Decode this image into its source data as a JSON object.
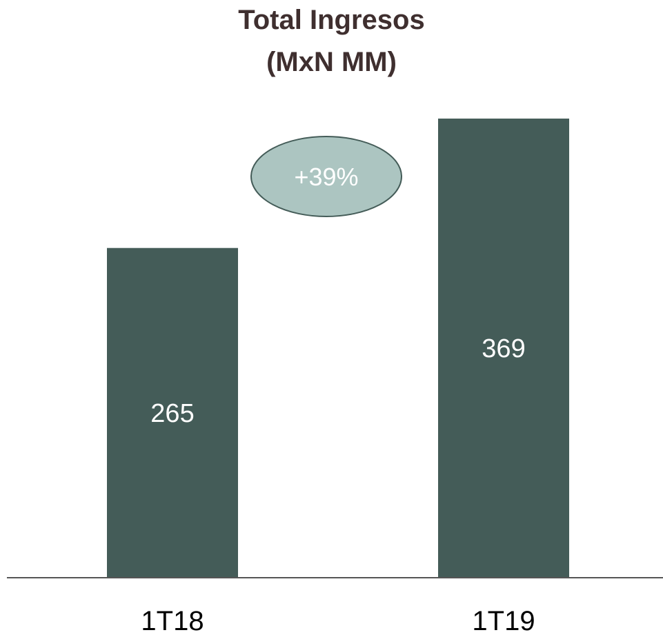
{
  "chart_data": {
    "type": "bar",
    "title": "Total Ingresos",
    "subtitle": "(MxN MM)",
    "categories": [
      "1T18",
      "1T19"
    ],
    "values": [
      265,
      369
    ],
    "data_labels": [
      "265",
      "369"
    ],
    "annotation": "+39%",
    "ylim": [
      0,
      380
    ],
    "grid": false,
    "legend": "none",
    "xlabel": "",
    "ylabel": "",
    "colors": {
      "bar": "#445c58",
      "bar_label": "#ffffff",
      "annotation_fill": "#acc5c1",
      "annotation_stroke": "#445c58",
      "annotation_text": "#ffffff",
      "title": "#3f2f2f",
      "axis": "#555555",
      "tick_label": "#000000"
    }
  }
}
